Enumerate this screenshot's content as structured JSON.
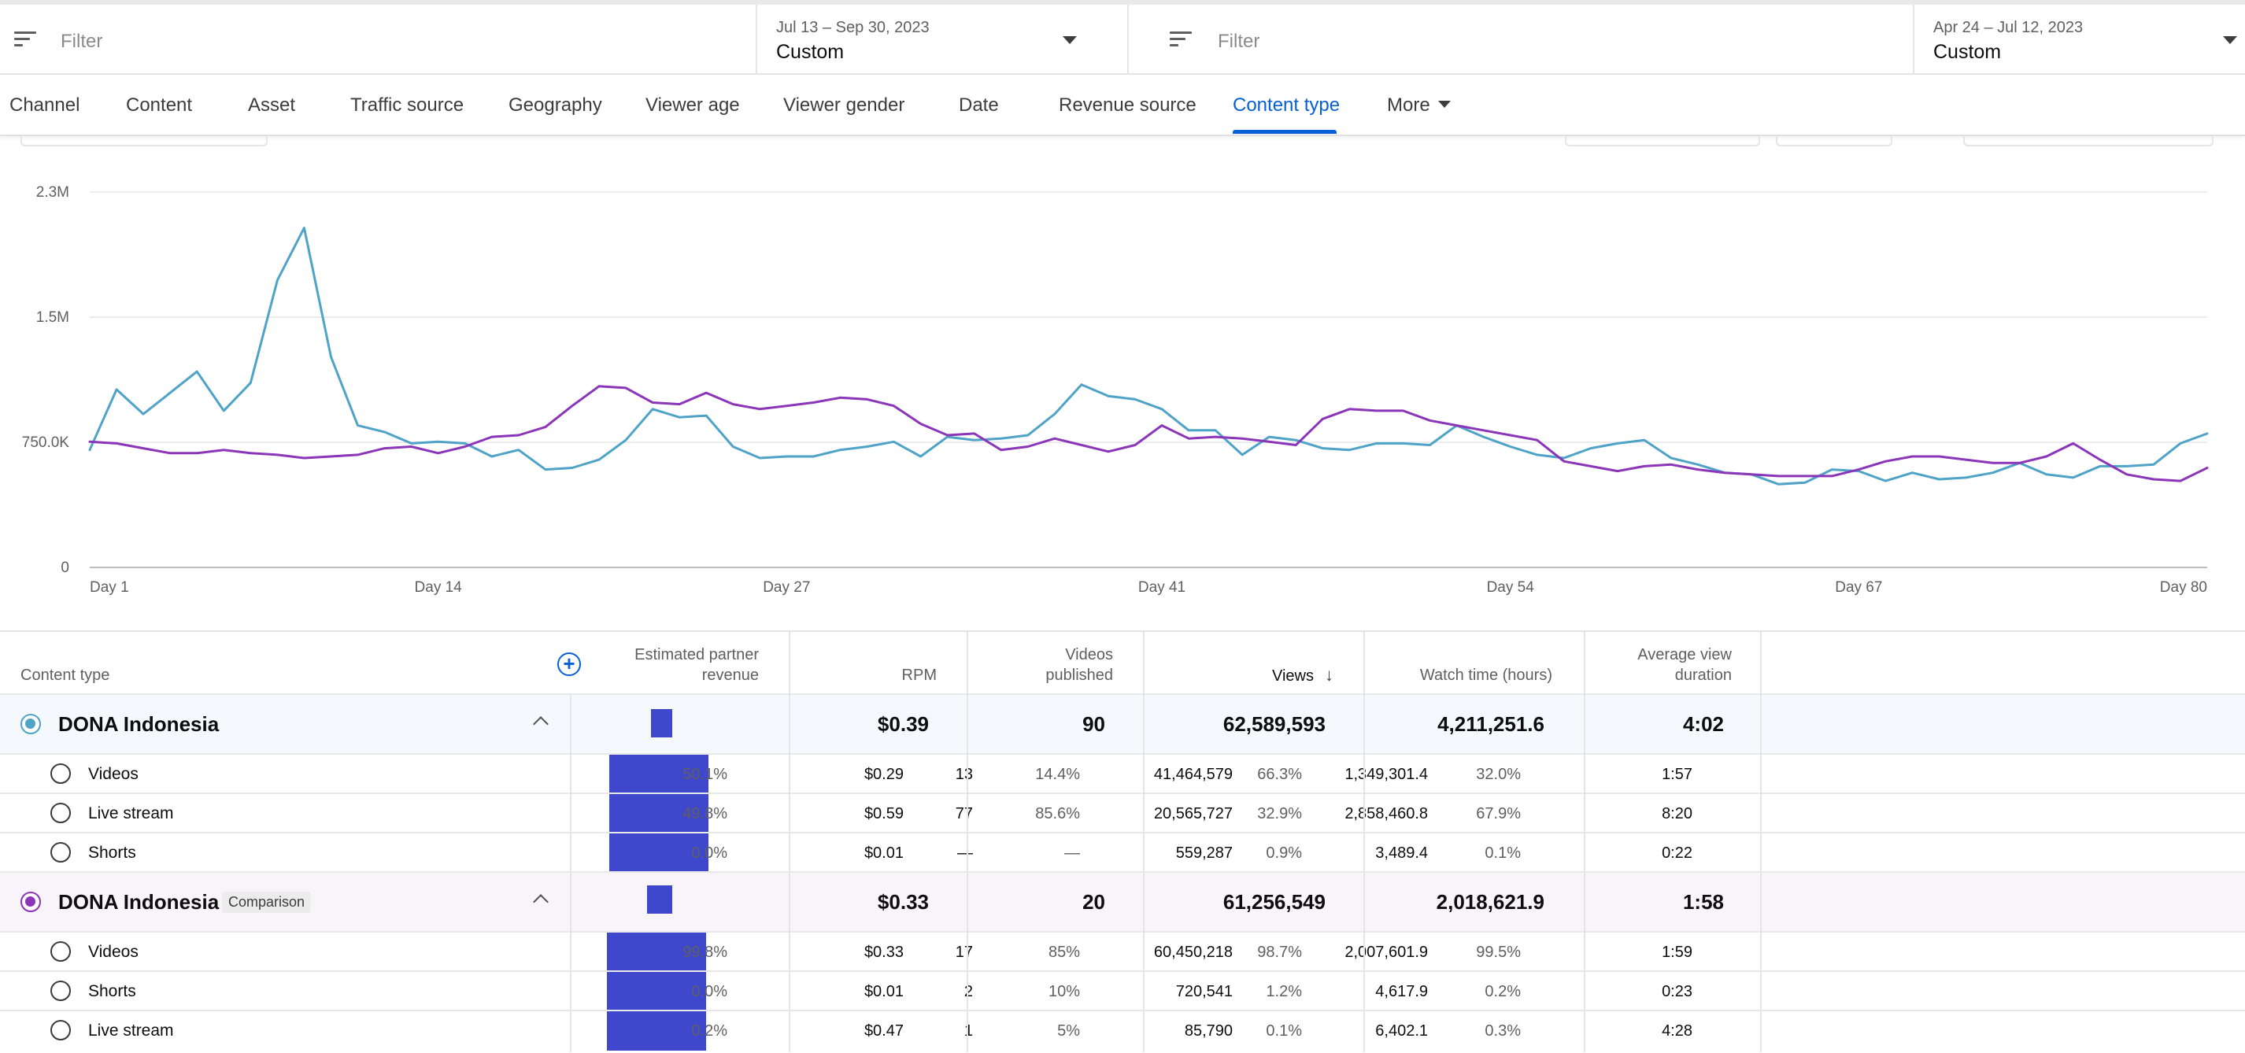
{
  "filters": {
    "left": {
      "placeholder": "Filter",
      "date_range": "Jul 13 – Sep 30, 2023",
      "mode": "Custom"
    },
    "right": {
      "placeholder": "Filter",
      "date_range": "Apr 24 – Jul 12, 2023",
      "mode": "Custom"
    }
  },
  "tabs": [
    {
      "label": "Channel"
    },
    {
      "label": "Content"
    },
    {
      "label": "Asset"
    },
    {
      "label": "Traffic source"
    },
    {
      "label": "Geography"
    },
    {
      "label": "Viewer age"
    },
    {
      "label": "Viewer gender"
    },
    {
      "label": "Date"
    },
    {
      "label": "Revenue source"
    },
    {
      "label": "Content type",
      "active": true
    },
    {
      "label": "More"
    }
  ],
  "chart_data": {
    "type": "line",
    "y_ticks": [
      "2.3M",
      "1.5M",
      "750.0K",
      "0"
    ],
    "ylim": [
      0,
      2300000
    ],
    "x_ticks": [
      {
        "day": 1,
        "label": "Day 1"
      },
      {
        "day": 14,
        "label": "Day 14"
      },
      {
        "day": 27,
        "label": "Day 27"
      },
      {
        "day": 41,
        "label": "Day 41"
      },
      {
        "day": 54,
        "label": "Day 54"
      },
      {
        "day": 67,
        "label": "Day 67"
      },
      {
        "day": 80,
        "label": "Day 80"
      }
    ],
    "grid": true,
    "series": [
      {
        "color": "#4fa3c7",
        "values": [
          720000,
          1090000,
          940000,
          1070000,
          1200000,
          960000,
          1130000,
          1760000,
          2080000,
          1290000,
          870000,
          830000,
          760000,
          770000,
          760000,
          680000,
          720000,
          600000,
          610000,
          660000,
          780000,
          970000,
          920000,
          930000,
          740000,
          670000,
          680000,
          680000,
          720000,
          740000,
          770000,
          680000,
          800000,
          780000,
          790000,
          810000,
          940000,
          1120000,
          1050000,
          1030000,
          970000,
          840000,
          840000,
          690000,
          800000,
          780000,
          730000,
          720000,
          760000,
          760000,
          750000,
          870000,
          800000,
          740000,
          690000,
          670000,
          730000,
          760000,
          780000,
          670000,
          630000,
          580000,
          570000,
          510000,
          520000,
          600000,
          590000,
          530000,
          580000,
          540000,
          550000,
          580000,
          640000,
          570000,
          550000,
          620000,
          620000,
          630000,
          760000,
          820000
        ]
      },
      {
        "color": "#8b35b8",
        "values": [
          770000,
          760000,
          730000,
          700000,
          700000,
          720000,
          700000,
          690000,
          670000,
          680000,
          690000,
          730000,
          740000,
          700000,
          740000,
          800000,
          810000,
          860000,
          990000,
          1110000,
          1100000,
          1010000,
          1000000,
          1070000,
          1000000,
          970000,
          990000,
          1010000,
          1040000,
          1030000,
          990000,
          880000,
          810000,
          820000,
          720000,
          740000,
          790000,
          750000,
          710000,
          750000,
          870000,
          790000,
          800000,
          790000,
          770000,
          750000,
          910000,
          970000,
          960000,
          960000,
          900000,
          870000,
          840000,
          810000,
          780000,
          650000,
          620000,
          590000,
          620000,
          630000,
          600000,
          580000,
          570000,
          560000,
          560000,
          560000,
          600000,
          650000,
          680000,
          680000,
          660000,
          640000,
          640000,
          680000,
          760000,
          660000,
          570000,
          540000,
          530000,
          610000
        ]
      }
    ]
  },
  "table": {
    "headers": {
      "content_type": "Content type",
      "revenue_l1": "Estimated partner",
      "revenue_l2": "revenue",
      "rpm": "RPM",
      "videos_l1": "Videos",
      "videos_l2": "published",
      "views": "Views",
      "views_sort": "↓",
      "watch": "Watch time (hours)",
      "avd_l1": "Average view",
      "avd_l2": "duration"
    },
    "groups": [
      {
        "name": "DONA Indonesia",
        "badge": "",
        "radio_color": "#4fa3c7",
        "revenue_fraction": 0.56,
        "rpm": "$0.39",
        "videos": "90",
        "views": "62,589,593",
        "watch": "4,211,251.6",
        "avd": "4:02",
        "rows": [
          {
            "name": "Videos",
            "rev_pct": "50.1%",
            "rpm": "$0.29",
            "videos": "13",
            "videos_pct": "14.4%",
            "views": "41,464,579",
            "views_pct": "66.3%",
            "watch": "1,349,301.4",
            "watch_pct": "32.0%",
            "avd": "1:57"
          },
          {
            "name": "Live stream",
            "rev_pct": "49.8%",
            "rpm": "$0.59",
            "videos": "77",
            "videos_pct": "85.6%",
            "views": "20,565,727",
            "views_pct": "32.9%",
            "watch": "2,858,460.8",
            "watch_pct": "67.9%",
            "avd": "8:20"
          },
          {
            "name": "Shorts",
            "rev_pct": "0.0%",
            "rpm": "$0.01",
            "videos": "—",
            "videos_pct": "—",
            "views": "559,287",
            "views_pct": "0.9%",
            "watch": "3,489.4",
            "watch_pct": "0.1%",
            "avd": "0:22"
          }
        ]
      },
      {
        "name": "DONA Indonesia",
        "badge": "Comparison",
        "radio_color": "#8b35b8",
        "revenue_fraction": 0.58,
        "rpm": "$0.33",
        "videos": "20",
        "views": "61,256,549",
        "watch": "2,018,621.9",
        "avd": "1:58",
        "rows": [
          {
            "name": "Videos",
            "rev_pct": "99.8%",
            "rpm": "$0.33",
            "videos": "17",
            "videos_pct": "85%",
            "views": "60,450,218",
            "views_pct": "98.7%",
            "watch": "2,007,601.9",
            "watch_pct": "99.5%",
            "avd": "1:59"
          },
          {
            "name": "Shorts",
            "rev_pct": "0.0%",
            "rpm": "$0.01",
            "videos": "2",
            "videos_pct": "10%",
            "views": "720,541",
            "views_pct": "1.2%",
            "watch": "4,617.9",
            "watch_pct": "0.2%",
            "avd": "0:23"
          },
          {
            "name": "Live stream",
            "rev_pct": "0.2%",
            "rpm": "$0.47",
            "videos": "1",
            "videos_pct": "5%",
            "views": "85,790",
            "views_pct": "0.1%",
            "watch": "6,402.1",
            "watch_pct": "0.3%",
            "avd": "4:28"
          }
        ]
      }
    ]
  }
}
